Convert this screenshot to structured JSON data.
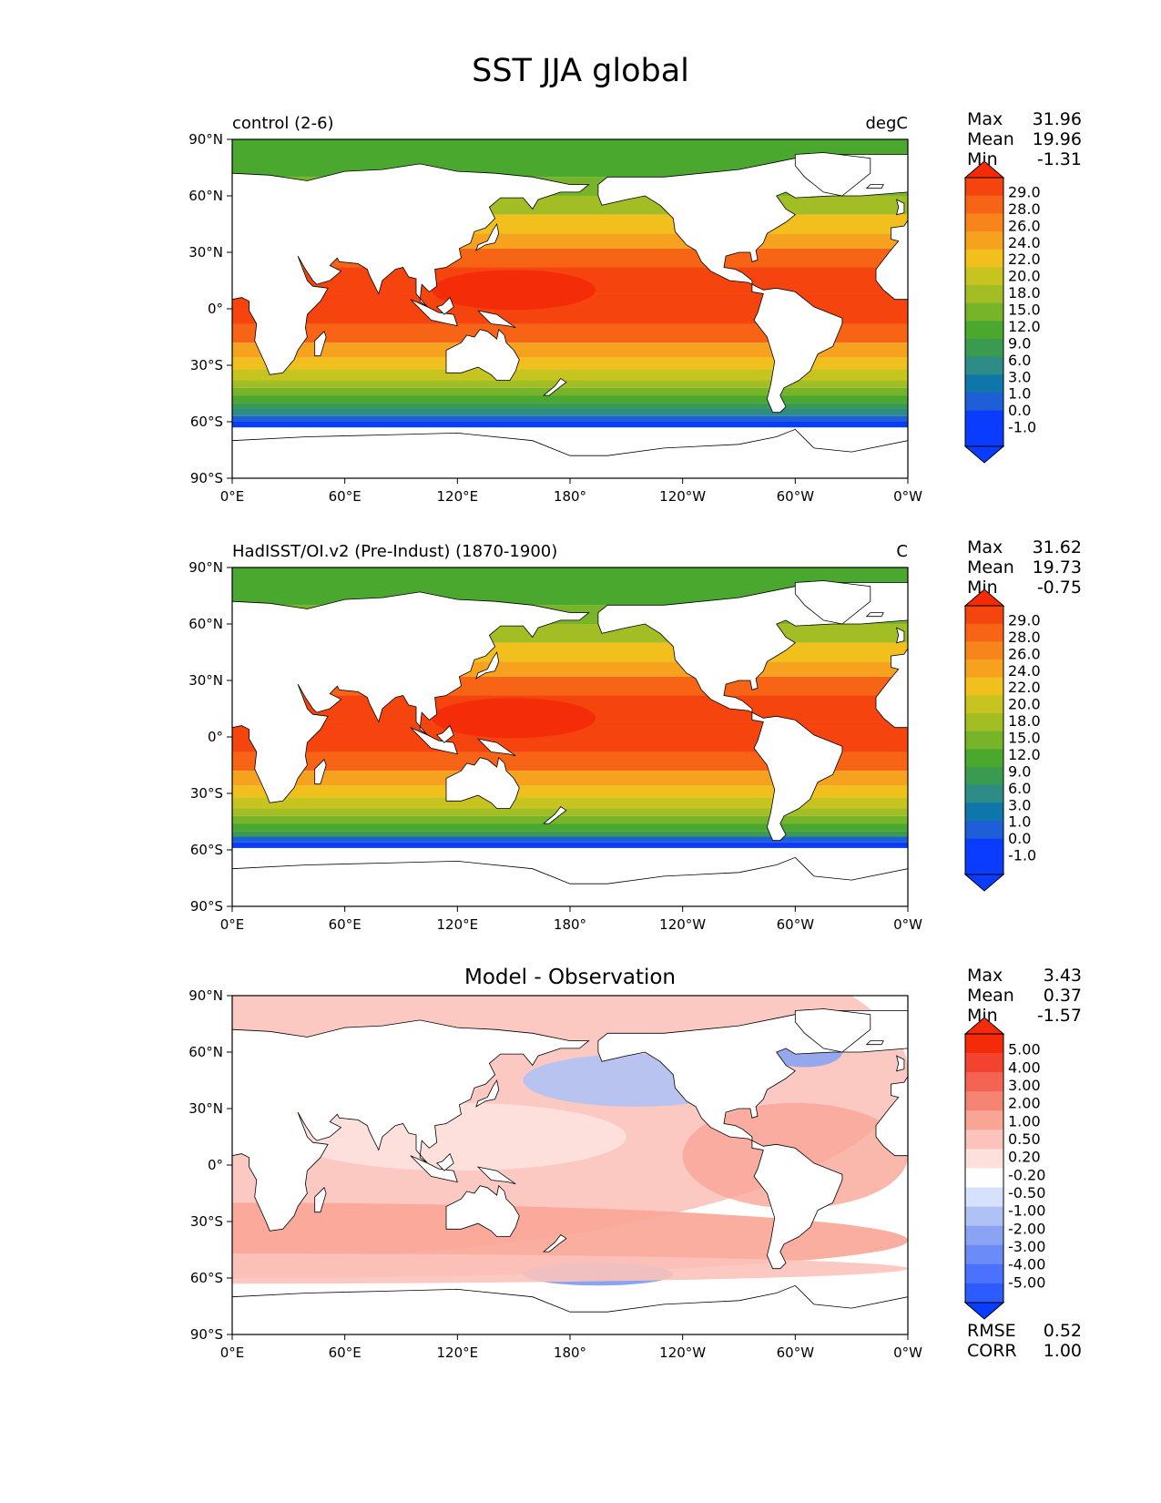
{
  "title": "SST JJA global",
  "colors": {
    "seq": [
      "#0a3cff",
      "#1e5fd7",
      "#0f76aa",
      "#2e8c86",
      "#3a9a4f",
      "#4ba82e",
      "#78b42a",
      "#a2be24",
      "#c8c41f",
      "#f2c01c",
      "#f7a21e",
      "#f8841c",
      "#f76415",
      "#f6440f",
      "#f52a08"
    ],
    "div": [
      "#0a3cff",
      "#2c5cff",
      "#4a72ff",
      "#6b8bf6",
      "#8aa3f2",
      "#b0c2f5",
      "#d6e1fb",
      "#ffffff",
      "#fde0dc",
      "#fbc3bb",
      "#f9a596",
      "#f68473",
      "#f46453",
      "#f34330",
      "#f52a08"
    ],
    "land": "#ffffff",
    "coast": "#000000"
  },
  "axes": {
    "lat_ticks": [
      "90°N",
      "60°N",
      "30°N",
      "0°",
      "30°S",
      "60°S",
      "90°S"
    ],
    "lon_ticks": [
      "0°E",
      "60°E",
      "120°E",
      "180°",
      "120°W",
      "60°W",
      "0°W"
    ]
  },
  "panels": [
    {
      "id": "control",
      "left_title": "control (2-6)",
      "right_title": "degC",
      "stats": {
        "max_label": "Max",
        "max": "31.96",
        "mean_label": "Mean",
        "mean": "19.96",
        "min_label": "Min",
        "min": "-1.31"
      },
      "colorbar_labels": [
        "29.0",
        "28.0",
        "26.0",
        "24.0",
        "22.0",
        "20.0",
        "18.0",
        "15.0",
        "12.0",
        "9.0",
        "6.0",
        "3.0",
        "1.0",
        "0.0",
        "-1.0"
      ]
    },
    {
      "id": "obs",
      "left_title": "HadISST/OI.v2 (Pre-Indust) (1870-1900)",
      "right_title": "C",
      "stats": {
        "max_label": "Max",
        "max": "31.62",
        "mean_label": "Mean",
        "mean": "19.73",
        "min_label": "Min",
        "min": "-0.75"
      },
      "colorbar_labels": [
        "29.0",
        "28.0",
        "26.0",
        "24.0",
        "22.0",
        "20.0",
        "18.0",
        "15.0",
        "12.0",
        "9.0",
        "6.0",
        "3.0",
        "1.0",
        "0.0",
        "-1.0"
      ]
    },
    {
      "id": "diff",
      "center_title": "Model - Observation",
      "stats": {
        "max_label": "Max",
        "max": "3.43",
        "mean_label": "Mean",
        "mean": "0.37",
        "min_label": "Min",
        "min": "-1.57"
      },
      "colorbar_labels": [
        "5.00",
        "4.00",
        "3.00",
        "2.00",
        "1.00",
        "0.50",
        "0.20",
        "-0.20",
        "-0.50",
        "-1.00",
        "-2.00",
        "-3.00",
        "-4.00",
        "-5.00"
      ],
      "extra_stats": {
        "rmse_label": "RMSE",
        "rmse": "0.52",
        "corr_label": "CORR",
        "corr": "1.00"
      }
    }
  ],
  "chart_data": [
    {
      "type": "heatmap",
      "title": "control (2-6)",
      "units": "degC",
      "xlim": [
        0,
        360
      ],
      "ylim": [
        -90,
        90
      ],
      "levels": [
        -1.0,
        0.0,
        1.0,
        3.0,
        6.0,
        9.0,
        12.0,
        15.0,
        18.0,
        20.0,
        22.0,
        24.0,
        26.0,
        28.0,
        29.0
      ],
      "max": 31.96,
      "mean": 19.96,
      "min": -1.31
    },
    {
      "type": "heatmap",
      "title": "HadISST/OI.v2 (Pre-Indust) (1870-1900)",
      "units": "C",
      "xlim": [
        0,
        360
      ],
      "ylim": [
        -90,
        90
      ],
      "levels": [
        -1.0,
        0.0,
        1.0,
        3.0,
        6.0,
        9.0,
        12.0,
        15.0,
        18.0,
        20.0,
        22.0,
        24.0,
        26.0,
        28.0,
        29.0
      ],
      "max": 31.62,
      "mean": 19.73,
      "min": -0.75
    },
    {
      "type": "heatmap",
      "title": "Model - Observation",
      "xlim": [
        0,
        360
      ],
      "ylim": [
        -90,
        90
      ],
      "levels": [
        -5.0,
        -4.0,
        -3.0,
        -2.0,
        -1.0,
        -0.5,
        -0.2,
        0.2,
        0.5,
        1.0,
        2.0,
        3.0,
        4.0,
        5.0
      ],
      "max": 3.43,
      "mean": 0.37,
      "min": -1.57,
      "rmse": 0.52,
      "corr": 1.0
    }
  ]
}
